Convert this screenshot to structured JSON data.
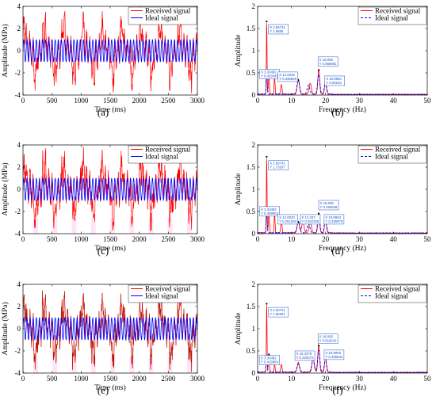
{
  "colors": {
    "received": "#ff0000",
    "ideal": "#0000ff",
    "overlay_e": "#7a2a10",
    "tooltip_border": "#1a55c8",
    "tooltip_bg": "#ffffff",
    "shade": "#ffccee"
  },
  "chart_data": [
    {
      "id": "a",
      "panel_label": "(a)",
      "type": "line",
      "xlabel": "Time (ms)",
      "ylabel": "Amplitude (MPa)",
      "xlim": [
        0,
        3000
      ],
      "ylim": [
        -4,
        4
      ],
      "xticks": [
        0,
        500,
        1000,
        1500,
        2000,
        2500,
        3000
      ],
      "yticks": [
        -4,
        -2,
        0,
        2,
        4
      ],
      "legend": [
        "Received signal",
        "Ideal signal"
      ],
      "legend_position": "top-right",
      "grid": false,
      "series": [
        {
          "name": "Received signal",
          "style": "solid",
          "color": "#ff0000",
          "noise": 0.8,
          "seed": 3
        },
        {
          "name": "Ideal signal",
          "style": "solid",
          "color": "#0000ff"
        }
      ]
    },
    {
      "id": "b",
      "panel_label": "(b)",
      "type": "line",
      "xlabel": "Frequency (Hz)",
      "ylabel": "Amplitude",
      "xlim": [
        0,
        50
      ],
      "ylim": [
        0,
        2
      ],
      "xticks": [
        0,
        10,
        20,
        30,
        40,
        50
      ],
      "yticks": [
        0,
        0.5,
        1,
        1.5,
        2
      ],
      "legend": [
        "Received signal",
        "Ideal signal"
      ],
      "legend_position": "top-right",
      "grid": false,
      "series": [
        {
          "name": "Received signal",
          "style": "solid",
          "color": "#ff0000",
          "peaks": [
            [
              3.33482,
              0.429345,
              0.25
            ],
            [
              2.66741,
              1.6595,
              0.16
            ],
            [
              5.0,
              0.42,
              0.2
            ],
            [
              7.0,
              0.22,
              0.3
            ],
            [
              12.0033,
              0.335929,
              0.5
            ],
            [
              15.5,
              0.25,
              0.5
            ],
            [
              18.005,
              0.565681,
              0.4
            ],
            [
              19.9953,
              0.28163,
              0.4
            ]
          ]
        },
        {
          "name": "Ideal signal",
          "style": "dashed",
          "color": "#0000ff",
          "peaks": [
            [
              12.0033,
              0.3,
              0.6
            ],
            [
              15.0,
              0.2,
              0.6
            ],
            [
              18.005,
              0.45,
              0.5
            ],
            [
              19.9953,
              0.26,
              0.5
            ],
            [
              2.66741,
              0.4,
              0.25
            ]
          ]
        }
      ],
      "datatips": [
        {
          "x": 2.66741,
          "y": 1.6595,
          "lines": [
            "X 2.66741",
            "Y 1.6595"
          ],
          "box_xy": [
            3.2,
            1.59
          ]
        },
        {
          "x": 3.33482,
          "y": 0.429345,
          "lines": [
            "X 3.33482",
            "Y 0.429345"
          ],
          "box_xy": [
            0.6,
            0.58
          ]
        },
        {
          "x": 12.0033,
          "y": 0.335929,
          "lines": [
            "X 12.0033",
            "Y 0.335929"
          ],
          "box_xy": [
            6.0,
            0.52
          ]
        },
        {
          "x": 18.005,
          "y": 0.565681,
          "lines": [
            "X 18.005",
            "Y 0.565681"
          ],
          "box_xy": [
            17.8,
            0.86
          ]
        },
        {
          "x": 19.9953,
          "y": 0.28163,
          "lines": [
            "X 19.9953",
            "Y 0.28163"
          ],
          "box_xy": [
            19.8,
            0.43
          ]
        }
      ]
    },
    {
      "id": "c",
      "panel_label": "(c)",
      "type": "line",
      "xlabel": "Time (ms)",
      "ylabel": "Amplitude (MPa)",
      "xlim": [
        0,
        3000
      ],
      "ylim": [
        -4,
        4
      ],
      "xticks": [
        0,
        500,
        1000,
        1500,
        2000,
        2500,
        3000
      ],
      "yticks": [
        -4,
        -2,
        0,
        2,
        4
      ],
      "legend": [
        "Received signal",
        "Ideal signal"
      ],
      "legend_position": "top-right",
      "grid": false,
      "series": [
        {
          "name": "Received signal",
          "style": "solid",
          "color": "#ff0000",
          "noise": 1.0,
          "seed": 11
        },
        {
          "name": "Ideal signal",
          "style": "solid",
          "color": "#0000ff"
        }
      ]
    },
    {
      "id": "d",
      "panel_label": "(d)",
      "type": "line",
      "xlabel": "Frequency (Hz)",
      "ylabel": "Amplitude",
      "xlim": [
        0,
        50
      ],
      "ylim": [
        0,
        2
      ],
      "xticks": [
        0,
        10,
        20,
        30,
        40,
        50
      ],
      "yticks": [
        0,
        0.5,
        1,
        1.5,
        2
      ],
      "legend": [
        "Received signal",
        "Ideal signal"
      ],
      "legend_position": "top-right",
      "grid": false,
      "series": [
        {
          "name": "Received signal",
          "style": "solid",
          "color": "#ff0000",
          "peaks": [
            [
              3.33482,
              0.459953,
              0.25
            ],
            [
              2.66741,
              1.73267,
              0.16
            ],
            [
              5.0,
              0.45,
              0.2
            ],
            [
              7.0,
              0.26,
              0.3
            ],
            [
              12.0033,
              0.261083,
              0.5
            ],
            [
              13.337,
              0.252326,
              0.5
            ],
            [
              15.5,
              0.28,
              0.5
            ],
            [
              18.005,
              0.450949,
              0.4
            ],
            [
              19.9953,
              0.335979,
              0.4
            ]
          ]
        },
        {
          "name": "Ideal signal",
          "style": "dashed",
          "color": "#0000ff",
          "peaks": [
            [
              12.0033,
              0.24,
              0.6
            ],
            [
              15.0,
              0.2,
              0.6
            ],
            [
              18.005,
              0.38,
              0.5
            ],
            [
              19.9953,
              0.3,
              0.5
            ],
            [
              2.66741,
              0.4,
              0.25
            ]
          ]
        }
      ],
      "datatips": [
        {
          "x": 2.66741,
          "y": 1.73267,
          "lines": [
            "X 2.66741",
            "Y 1.73267"
          ],
          "box_xy": [
            3.2,
            1.65
          ]
        },
        {
          "x": 3.33482,
          "y": 0.459953,
          "lines": [
            "X 3.33482",
            "Y 0.459953"
          ],
          "box_xy": [
            0.6,
            0.61
          ]
        },
        {
          "x": 12.0033,
          "y": 0.261083,
          "lines": [
            "X 12.0033",
            "Y 0.261083"
          ],
          "box_xy": [
            6.0,
            0.43
          ]
        },
        {
          "x": 13.337,
          "y": 0.252326,
          "lines": [
            "X 13.337",
            "Y 0.252326"
          ],
          "box_xy": [
            12.6,
            0.43
          ]
        },
        {
          "x": 18.005,
          "y": 0.450949,
          "lines": [
            "X 18.005",
            "Y 0.450949"
          ],
          "box_xy": [
            18.0,
            0.75
          ]
        },
        {
          "x": 19.9953,
          "y": 0.335979,
          "lines": [
            "X 19.9953",
            "Y 0.335979"
          ],
          "box_xy": [
            19.6,
            0.43
          ]
        }
      ]
    },
    {
      "id": "e",
      "panel_label": "(e)",
      "type": "line",
      "xlabel": "Time (ms)",
      "ylabel": "Amplitude (MPa)",
      "xlim": [
        0,
        3000
      ],
      "ylim": [
        -4,
        4
      ],
      "xticks": [
        0,
        500,
        1000,
        1500,
        2000,
        2500,
        3000
      ],
      "yticks": [
        -4,
        -2,
        0,
        2,
        4
      ],
      "legend": [
        "Received signal",
        "Ideal signal"
      ],
      "legend_position": "top-right",
      "grid": false,
      "series": [
        {
          "name": "Received signal",
          "style": "solid",
          "color": "#ff0000",
          "noise": 0.9,
          "seed": 23
        },
        {
          "name": "Ideal signal",
          "style": "solid",
          "color": "#0000ff"
        }
      ]
    },
    {
      "id": "f",
      "panel_label": "(f)",
      "type": "line",
      "xlabel": "Frequency (Hz)",
      "ylabel": "Amplitude",
      "xlim": [
        0,
        50
      ],
      "ylim": [
        0,
        2
      ],
      "xticks": [
        0,
        10,
        20,
        30,
        40,
        50
      ],
      "yticks": [
        0,
        0.5,
        1,
        1.5,
        2
      ],
      "legend": [
        "Received signal",
        "Ideal signal"
      ],
      "legend_position": "top-right",
      "grid": false,
      "series": [
        {
          "name": "Received signal",
          "style": "solid",
          "color": "#ff0000",
          "peaks": [
            [
              3.33482,
              0.419984,
              0.25
            ],
            [
              2.66741,
              1.56251,
              0.16
            ],
            [
              5.0,
              0.2,
              0.2
            ],
            [
              7.0,
              0.18,
              0.3
            ],
            [
              12.0033,
              0.22,
              0.5
            ],
            [
              16.3379,
              0.326472,
              0.5
            ],
            [
              18.005,
              0.619216,
              0.4
            ],
            [
              19.9953,
              0.335541,
              0.4
            ]
          ]
        },
        {
          "name": "Ideal signal",
          "style": "dashed",
          "color": "#0000ff",
          "peaks": [
            [
              12.0033,
              0.18,
              0.6
            ],
            [
              16.3379,
              0.28,
              0.6
            ],
            [
              18.005,
              0.5,
              0.5
            ],
            [
              19.9953,
              0.3,
              0.5
            ],
            [
              2.66741,
              0.4,
              0.25
            ]
          ]
        }
      ],
      "datatips": [
        {
          "x": 2.66741,
          "y": 1.56251,
          "lines": [
            "X 2.66741",
            "Y 1.56251"
          ],
          "box_xy": [
            3.2,
            1.48
          ]
        },
        {
          "x": 3.33482,
          "y": 0.419984,
          "lines": [
            "X 3.33482",
            "Y 0.419984"
          ],
          "box_xy": [
            0.6,
            0.4
          ]
        },
        {
          "x": 16.3379,
          "y": 0.326472,
          "lines": [
            "X 16.3379",
            "Y 0.326472"
          ],
          "box_xy": [
            11.0,
            0.5
          ]
        },
        {
          "x": 18.005,
          "y": 0.619216,
          "lines": [
            "X 18.005",
            "Y 0.619216"
          ],
          "box_xy": [
            17.8,
            0.88
          ]
        },
        {
          "x": 19.9953,
          "y": 0.335541,
          "lines": [
            "X 19.9953",
            "Y 0.335541"
          ],
          "box_xy": [
            19.6,
            0.52
          ]
        }
      ]
    }
  ]
}
